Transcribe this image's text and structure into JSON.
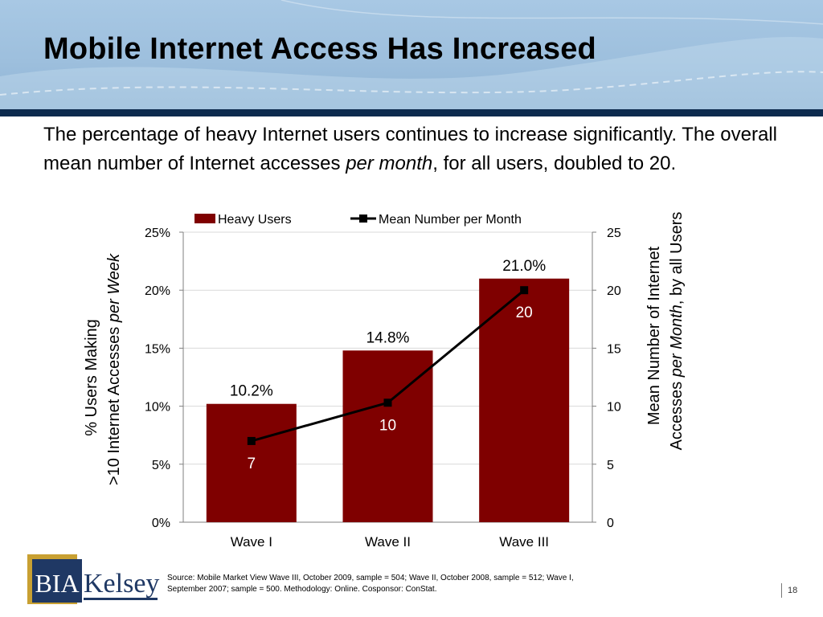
{
  "slide": {
    "title": "Mobile Internet Access Has Increased",
    "body_part1": "The percentage of heavy Internet users continues to increase significantly. The overall mean number of Internet accesses ",
    "body_italic": "per month",
    "body_part2": ", for all users, doubled to 20.",
    "source": "Source: Mobile Market View Wave III, October 2009, sample = 504; Wave II, October 2008, sample = 512; Wave I, September 2007; sample = 500. Methodology: Online. Cosponsor: ConStat.",
    "page_number": "18",
    "logo_bia": "BIA",
    "logo_kelsey": "Kelsey"
  },
  "chart_data": {
    "type": "bar",
    "categories": [
      "Wave I",
      "Wave II",
      "Wave III"
    ],
    "series": [
      {
        "name": "Heavy Users",
        "type": "bar",
        "axis": "left",
        "values": [
          10.2,
          14.8,
          21.0
        ],
        "labels": [
          "10.2%",
          "14.8%",
          "21.0%"
        ],
        "color": "#7f0000"
      },
      {
        "name": "Mean Number per Month",
        "type": "line",
        "axis": "right",
        "values": [
          7,
          10.3,
          20
        ],
        "labels": [
          "7",
          "10",
          "20"
        ],
        "color": "#000000"
      }
    ],
    "y_left": {
      "label_line1": "% Users Making",
      "label_line2_a": ">10 Internet Accesses ",
      "label_line2_b": "per Week",
      "range": [
        0,
        25
      ],
      "ticks": [
        0,
        5,
        10,
        15,
        20,
        25
      ],
      "tick_labels": [
        "0%",
        "5%",
        "10%",
        "15%",
        "20%",
        "25%"
      ]
    },
    "y_right": {
      "label_line1": "Mean Number of Internet",
      "label_line2_a": "Accesses ",
      "label_line2_b": "per Month",
      "label_line2_c": ", by all Users",
      "range": [
        0,
        25
      ],
      "ticks": [
        0,
        5,
        10,
        15,
        20,
        25
      ],
      "tick_labels": [
        "0",
        "5",
        "10",
        "15",
        "20",
        "25"
      ]
    },
    "grid": true,
    "legend": "top"
  },
  "colors": {
    "bar": "#7f0000",
    "line": "#000000",
    "header_bar": "#0d2b4e",
    "logo_navy": "#1f3864",
    "logo_gold": "#c8a032"
  }
}
